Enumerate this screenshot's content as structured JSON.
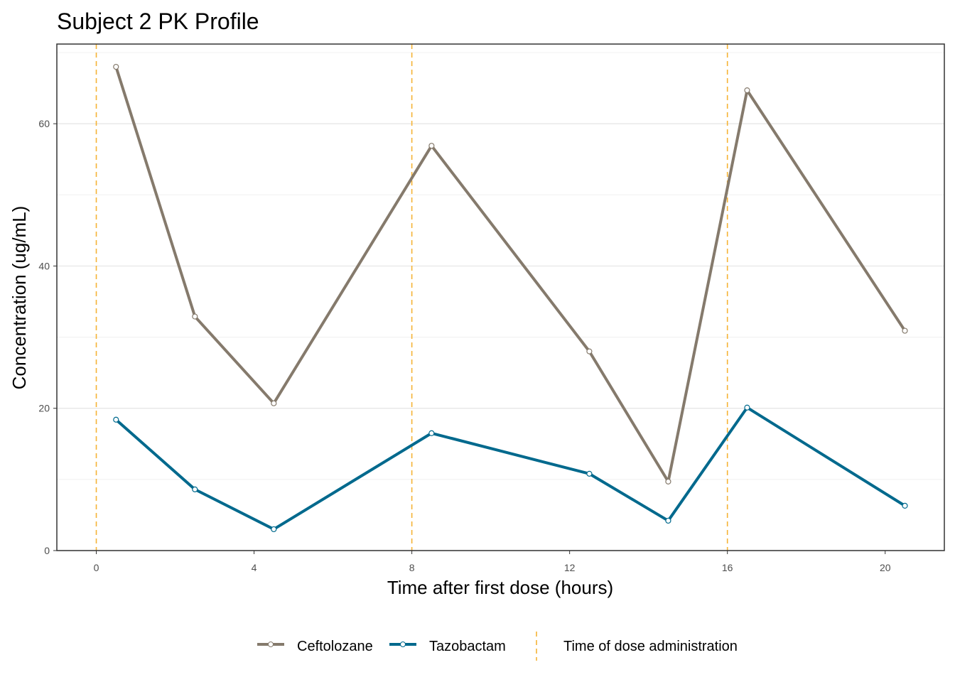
{
  "chart_data": {
    "type": "line",
    "title": "Subject 2 PK Profile",
    "xlabel": "Time after first dose (hours)",
    "ylabel": "Concentration (ug/mL)",
    "xlim": [
      -1,
      21.5
    ],
    "ylim": [
      0,
      71.2
    ],
    "xticks": [
      0,
      4,
      8,
      12,
      16,
      20
    ],
    "yticks": [
      0,
      20,
      40,
      60
    ],
    "grid": true,
    "legend_position": "bottom",
    "x": [
      0.5,
      2.5,
      4.5,
      8.5,
      12.5,
      14.5,
      16.5,
      20.5
    ],
    "series": [
      {
        "name": "Ceftolozane",
        "color": "#857a6c",
        "values": [
          68.0,
          32.9,
          20.7,
          56.9,
          28.0,
          9.7,
          64.7,
          30.9
        ]
      },
      {
        "name": "Tazobactam",
        "color": "#00698d",
        "values": [
          18.4,
          8.6,
          3.0,
          16.5,
          10.8,
          4.2,
          20.1,
          6.3
        ]
      }
    ],
    "dose_times": [
      0,
      8,
      16
    ],
    "dose_label": "Time of dose administration",
    "dose_color": "#f5b335"
  }
}
